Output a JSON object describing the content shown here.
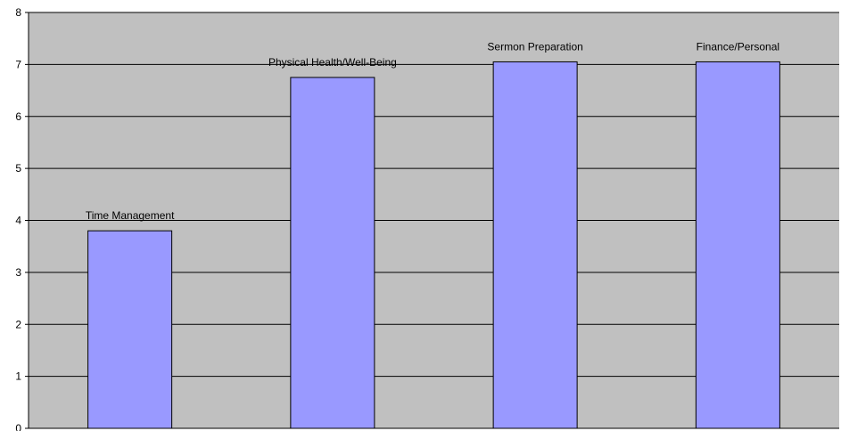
{
  "chart_data": {
    "type": "bar",
    "categories": [
      "Time Management",
      "Physical Health/Well-Being",
      "Sermon Preparation",
      "Finance/Personal"
    ],
    "values": [
      3.8,
      6.75,
      7.05,
      7.05
    ],
    "data_labels": [
      "Time Management",
      "Physical Health/Well-Being",
      "Sermon Preparation",
      "Finance/Personal"
    ],
    "y_ticks": [
      "0",
      "1",
      "2",
      "3",
      "4",
      "5",
      "6",
      "7",
      "8"
    ],
    "ylim": [
      0,
      8
    ],
    "grid": true,
    "legend": "none",
    "colors": {
      "plot_background": "#c0c0c0",
      "bar_fill": "#9999ff",
      "bar_stroke": "#000000",
      "gridline": "#000000"
    }
  }
}
